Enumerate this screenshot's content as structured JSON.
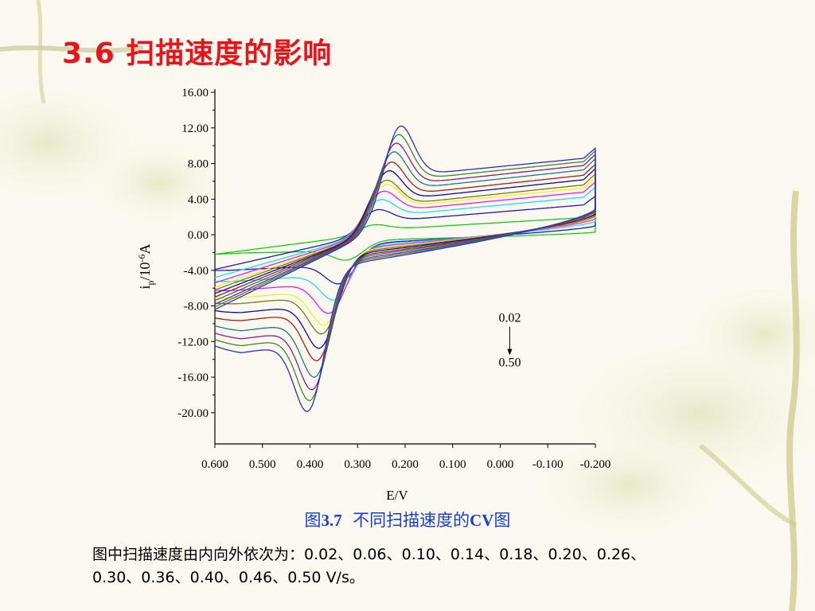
{
  "slide": {
    "title": "3.6 扫描速度的影响",
    "caption_prefix": "图",
    "caption_number": "3.7",
    "caption_text": "不同扫描速度的",
    "caption_suffix_bold": "CV",
    "caption_end": "图",
    "note_line1": "图中扫描速度由内向外依次为：0.02、0.06、0.10、0.14、0.18、0.20、0.26、",
    "note_line2": "0.30、0.36、0.40、0.46、0.50 V/s。"
  },
  "colors": {
    "title": "#e8141b",
    "caption": "#1a3cd6",
    "series": [
      "#18c818",
      "#1a1ab8",
      "#18e0f0",
      "#f018f0",
      "#f0f018",
      "#7a7a10",
      "#0a0aa0",
      "#aa1a1a",
      "#1a7a7a",
      "#8a1a8a",
      "#3a8a2a",
      "#2a2ad8"
    ]
  },
  "chart_data": {
    "type": "line",
    "title": "",
    "xlabel": "E/V",
    "ylabel_main": "i",
    "ylabel_sub": "p",
    "ylabel_unit": "/10",
    "ylabel_exp": "-6",
    "ylabel_tail": "A",
    "xlim": [
      0.6,
      -0.2
    ],
    "ylim": [
      -23.5,
      16.0
    ],
    "x_ticks": [
      0.6,
      0.5,
      0.4,
      0.3,
      0.2,
      0.1,
      0.0,
      -0.1,
      -0.2
    ],
    "x_tick_labels": [
      "0.600",
      "0.500",
      "0.400",
      "0.300",
      "0.200",
      "0.100",
      "0.000",
      "-0.100",
      "-0.200"
    ],
    "y_ticks": [
      16,
      12,
      8,
      4,
      0,
      -4,
      -8,
      -12,
      -16,
      -20
    ],
    "y_tick_labels": [
      "16.00",
      "12.00",
      "8.00",
      "4.00",
      "0.00",
      "-4.00",
      "-8.00",
      "-12.00",
      "-16.00",
      "-20.00"
    ],
    "grid": false,
    "annotations": [
      {
        "text": "0.02",
        "x": -0.02,
        "y": -9.8
      },
      {
        "text": "0.50",
        "x": -0.02,
        "y": -14.8
      }
    ],
    "series": [
      {
        "scan_rate": 0.02,
        "pc_E": 0.27,
        "pc_I": 1.2,
        "pa_E": 0.315,
        "pa_I": -2.8,
        "ox_end": 2.6,
        "red_end": 0.3,
        "start_low": -2.2,
        "start_high": -2.2
      },
      {
        "scan_rate": 0.06,
        "pc_E": 0.265,
        "pa_E": 0.33,
        "pc_I": 3.0,
        "pa_I": -5.6,
        "ox_end": 4.3,
        "red_end": 1.0,
        "start_low": -4.0,
        "start_high": -3.9
      },
      {
        "scan_rate": 0.1,
        "pc_E": 0.26,
        "pa_E": 0.34,
        "pc_I": 4.2,
        "pa_I": -7.5,
        "ox_end": 5.3,
        "red_end": 1.5,
        "start_low": -5.2,
        "start_high": -4.8
      },
      {
        "scan_rate": 0.14,
        "pc_E": 0.255,
        "pa_E": 0.35,
        "pc_I": 5.2,
        "pa_I": -9.0,
        "ox_end": 5.9,
        "red_end": 1.8,
        "start_low": -6.2,
        "start_high": -5.4
      },
      {
        "scan_rate": 0.18,
        "pc_E": 0.25,
        "pa_E": 0.36,
        "pc_I": 6.0,
        "pa_I": -10.3,
        "ox_end": 6.4,
        "red_end": 2.0,
        "start_low": -7.0,
        "start_high": -5.9
      },
      {
        "scan_rate": 0.2,
        "pc_E": 0.25,
        "pa_E": 0.365,
        "pc_I": 6.5,
        "pa_I": -11.3,
        "ox_end": 6.8,
        "red_end": 2.1,
        "start_low": -7.6,
        "start_high": -6.2
      },
      {
        "scan_rate": 0.26,
        "pc_E": 0.245,
        "pa_E": 0.37,
        "pc_I": 7.6,
        "pa_I": -13.0,
        "ox_end": 7.4,
        "red_end": 2.3,
        "start_low": -8.4,
        "start_high": -6.6
      },
      {
        "scan_rate": 0.3,
        "pc_E": 0.24,
        "pa_E": 0.375,
        "pc_I": 8.6,
        "pa_I": -14.4,
        "ox_end": 7.9,
        "red_end": 2.4,
        "start_low": -9.2,
        "start_high": -7.0
      },
      {
        "scan_rate": 0.36,
        "pc_E": 0.235,
        "pa_E": 0.38,
        "pc_I": 9.8,
        "pa_I": -16.4,
        "ox_end": 8.5,
        "red_end": 2.6,
        "start_low": -10.0,
        "start_high": -7.4
      },
      {
        "scan_rate": 0.4,
        "pc_E": 0.23,
        "pa_E": 0.385,
        "pc_I": 10.8,
        "pa_I": -17.8,
        "ox_end": 9.0,
        "red_end": 2.7,
        "start_low": -10.8,
        "start_high": -7.8
      },
      {
        "scan_rate": 0.46,
        "pc_E": 0.225,
        "pa_E": 0.39,
        "pc_I": 11.8,
        "pa_I": -19.0,
        "ox_end": 9.4,
        "red_end": 2.8,
        "start_low": -11.5,
        "start_high": -8.1
      },
      {
        "scan_rate": 0.5,
        "pc_E": 0.22,
        "pa_E": 0.395,
        "pc_I": 12.8,
        "pa_I": -20.2,
        "ox_end": 9.7,
        "red_end": 2.9,
        "start_low": -12.2,
        "start_high": -8.4
      }
    ]
  }
}
